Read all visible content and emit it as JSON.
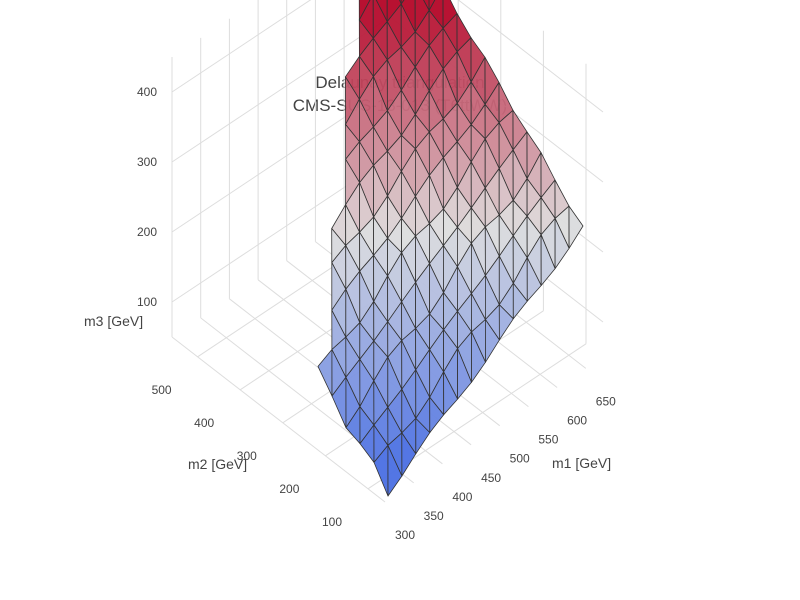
{
  "chart_data": {
    "type": "surface3d",
    "title": "Delaunay triangulation",
    "subtitle": "CMS-SUS-13-013 (T6ttWW)",
    "x_axis": {
      "label": "m1 [GeV]",
      "ticks": [
        "300",
        "350",
        "400",
        "450",
        "500",
        "550",
        "600",
        "650"
      ],
      "range": [
        300,
        680
      ]
    },
    "y_axis": {
      "label": "m2 [GeV]",
      "ticks": [
        "100",
        "200",
        "300",
        "400",
        "500"
      ],
      "range": [
        60,
        560
      ]
    },
    "z_axis": {
      "label": "m3 [GeV]",
      "ticks": [
        "100",
        "200",
        "300",
        "400"
      ],
      "range": [
        50,
        450
      ]
    },
    "colorscale": "coolwarm",
    "colors": {
      "low": "#4a6fe3",
      "mid": "#dddddd",
      "high": "#b40426",
      "edge": "#333333",
      "grid": "#dddddd"
    },
    "grid": true
  }
}
